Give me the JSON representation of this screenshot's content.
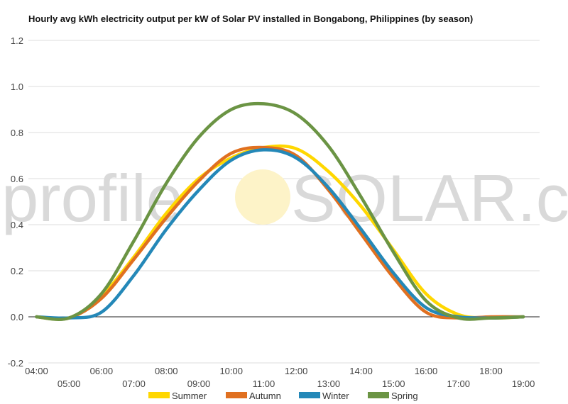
{
  "chart_data": {
    "type": "line",
    "title": "Hourly avg kWh electricity output per kW of Solar PV installed in Bongabong, Philippines (by season)",
    "watermark": "profileSOLAR.com",
    "xlabel": "",
    "ylabel": "",
    "ylim": [
      -0.2,
      1.2
    ],
    "yticks": [
      "-0.2",
      "0.0",
      "0.2",
      "0.4",
      "0.6",
      "0.8",
      "1.0",
      "1.2"
    ],
    "xlim": [
      3.75,
      19.5
    ],
    "x_ticks_upper": [
      "04:00",
      "06:00",
      "08:00",
      "10:00",
      "12:00",
      "14:00",
      "16:00",
      "18:00"
    ],
    "x_ticks_lower": [
      "05:00",
      "07:00",
      "09:00",
      "11:00",
      "13:00",
      "15:00",
      "17:00",
      "19:00"
    ],
    "grid": true,
    "legend_position": "bottom",
    "x": [
      4,
      5,
      6,
      7,
      8,
      9,
      10,
      11,
      12,
      13,
      14,
      15,
      16,
      17,
      18,
      19
    ],
    "series": [
      {
        "name": "Summer",
        "color": "#ffd700",
        "values": [
          0.0,
          -0.005,
          0.09,
          0.26,
          0.45,
          0.6,
          0.69,
          0.735,
          0.73,
          0.63,
          0.48,
          0.29,
          0.1,
          0.01,
          -0.005,
          0.0
        ]
      },
      {
        "name": "Autumn",
        "color": "#e07020",
        "values": [
          0.0,
          -0.005,
          0.08,
          0.25,
          0.43,
          0.59,
          0.71,
          0.735,
          0.7,
          0.55,
          0.36,
          0.17,
          0.02,
          -0.005,
          0.0,
          0.0
        ]
      },
      {
        "name": "Winter",
        "color": "#2488b8",
        "values": [
          0.0,
          -0.005,
          0.02,
          0.18,
          0.38,
          0.55,
          0.68,
          0.725,
          0.69,
          0.56,
          0.38,
          0.19,
          0.04,
          0.0,
          -0.005,
          0.0
        ]
      },
      {
        "name": "Spring",
        "color": "#6b9444",
        "values": [
          0.0,
          -0.005,
          0.1,
          0.33,
          0.58,
          0.78,
          0.9,
          0.925,
          0.88,
          0.74,
          0.52,
          0.28,
          0.07,
          -0.005,
          -0.005,
          0.0
        ]
      }
    ]
  }
}
